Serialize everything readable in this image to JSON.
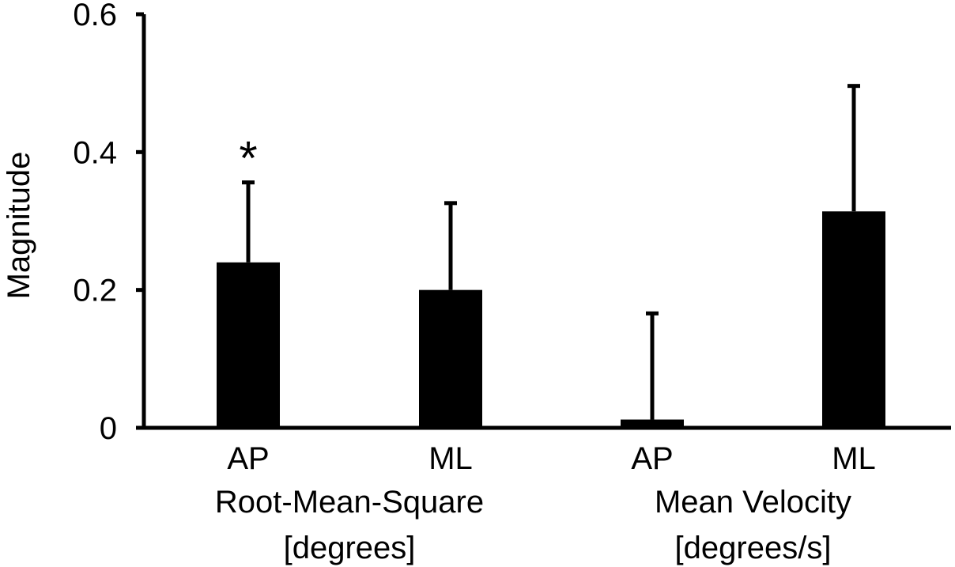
{
  "chart_data": {
    "type": "bar",
    "ylabel": "Magnitude",
    "ylim": [
      0,
      0.6
    ],
    "y_ticks": [
      {
        "value": 0,
        "label": "0"
      },
      {
        "value": 0.2,
        "label": "0.2"
      },
      {
        "value": 0.4,
        "label": "0.4"
      },
      {
        "value": 0.6,
        "label": "0.6"
      }
    ],
    "categories": [
      "AP",
      "ML",
      "AP",
      "ML"
    ],
    "values": [
      0.24,
      0.2,
      0.012,
      0.314
    ],
    "error_upper": [
      0.356,
      0.326,
      0.166,
      0.496
    ],
    "annotations": [
      {
        "category_index": 0,
        "text": "*"
      }
    ],
    "groups": [
      {
        "lines": [
          "Root-Mean-Square",
          "[degrees]"
        ],
        "category_indices": [
          0,
          1
        ]
      },
      {
        "lines": [
          "Mean Velocity",
          "[degrees/s]"
        ],
        "category_indices": [
          2,
          3
        ]
      }
    ],
    "bar_color": "#000000",
    "grid": false,
    "legend": "none"
  }
}
